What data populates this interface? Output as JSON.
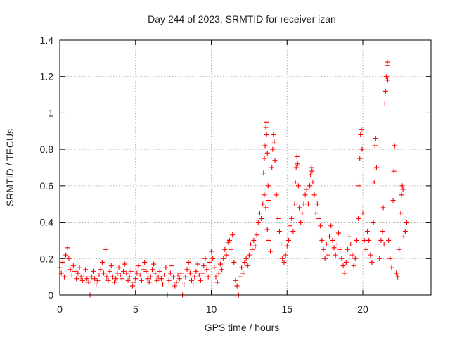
{
  "chart_data": {
    "type": "scatter",
    "title": "Day 244 of 2023, SRMTID for receiver izan",
    "xlabel": "GPS time / hours",
    "ylabel": "SRMTID / TECUs",
    "xlim": [
      0,
      24.5
    ],
    "ylim": [
      0,
      1.4
    ],
    "xticks": [
      0,
      5,
      10,
      15,
      20
    ],
    "xtick_labels": [
      "0",
      "5",
      "10",
      "15",
      "20"
    ],
    "yticks": [
      0,
      0.2,
      0.4,
      0.6,
      0.8,
      1.0,
      1.2,
      1.4
    ],
    "ytick_labels": [
      "0",
      "0.2",
      "0.4",
      "0.6",
      "0.8",
      "1",
      "1.2",
      "1.4"
    ],
    "grid": true,
    "marker": "+",
    "color": "#ff0000",
    "series": [
      {
        "name": "SRMTID",
        "points": [
          [
            0.0,
            0.15
          ],
          [
            0.1,
            0.12
          ],
          [
            0.2,
            0.18
          ],
          [
            0.3,
            0.1
          ],
          [
            0.4,
            0.22
          ],
          [
            0.5,
            0.26
          ],
          [
            0.6,
            0.2
          ],
          [
            0.7,
            0.14
          ],
          [
            0.8,
            0.11
          ],
          [
            0.9,
            0.16
          ],
          [
            1.0,
            0.13
          ],
          [
            1.1,
            0.09
          ],
          [
            1.2,
            0.12
          ],
          [
            1.3,
            0.15
          ],
          [
            1.4,
            0.1
          ],
          [
            1.5,
            0.08
          ],
          [
            1.6,
            0.11
          ],
          [
            1.7,
            0.14
          ],
          [
            1.8,
            0.09
          ],
          [
            1.9,
            0.07
          ],
          [
            2.0,
            0.0
          ],
          [
            2.1,
            0.1
          ],
          [
            2.2,
            0.13
          ],
          [
            2.3,
            0.09
          ],
          [
            2.4,
            0.06
          ],
          [
            2.5,
            0.08
          ],
          [
            2.6,
            0.11
          ],
          [
            2.7,
            0.14
          ],
          [
            2.8,
            0.18
          ],
          [
            2.9,
            0.12
          ],
          [
            3.0,
            0.25
          ],
          [
            3.1,
            0.1
          ],
          [
            3.2,
            0.08
          ],
          [
            3.3,
            0.13
          ],
          [
            3.4,
            0.16
          ],
          [
            3.5,
            0.1
          ],
          [
            3.6,
            0.07
          ],
          [
            3.7,
            0.09
          ],
          [
            3.8,
            0.12
          ],
          [
            3.9,
            0.15
          ],
          [
            4.0,
            0.11
          ],
          [
            4.1,
            0.09
          ],
          [
            4.2,
            0.13
          ],
          [
            4.3,
            0.17
          ],
          [
            4.4,
            0.12
          ],
          [
            4.5,
            0.08
          ],
          [
            4.6,
            0.1
          ],
          [
            4.7,
            0.13
          ],
          [
            4.8,
            0.05
          ],
          [
            4.9,
            0.07
          ],
          [
            5.0,
            0.09
          ],
          [
            5.1,
            0.12
          ],
          [
            5.2,
            0.16
          ],
          [
            5.3,
            0.11
          ],
          [
            5.4,
            0.08
          ],
          [
            5.5,
            0.14
          ],
          [
            5.6,
            0.18
          ],
          [
            5.7,
            0.13
          ],
          [
            5.8,
            0.09
          ],
          [
            5.9,
            0.07
          ],
          [
            6.0,
            0.1
          ],
          [
            6.1,
            0.14
          ],
          [
            6.2,
            0.17
          ],
          [
            6.3,
            0.12
          ],
          [
            6.4,
            0.08
          ],
          [
            6.5,
            0.1
          ],
          [
            6.6,
            0.13
          ],
          [
            6.7,
            0.09
          ],
          [
            6.8,
            0.06
          ],
          [
            6.9,
            0.11
          ],
          [
            7.0,
            0.15
          ],
          [
            7.1,
            0.0
          ],
          [
            7.2,
            0.08
          ],
          [
            7.3,
            0.12
          ],
          [
            7.4,
            0.16
          ],
          [
            7.5,
            0.1
          ],
          [
            7.6,
            0.05
          ],
          [
            7.7,
            0.07
          ],
          [
            7.8,
            0.11
          ],
          [
            7.9,
            0.09
          ],
          [
            8.0,
            0.12
          ],
          [
            8.1,
            0.0
          ],
          [
            8.2,
            0.06
          ],
          [
            8.3,
            0.1
          ],
          [
            8.4,
            0.14
          ],
          [
            8.5,
            0.18
          ],
          [
            8.6,
            0.12
          ],
          [
            8.7,
            0.08
          ],
          [
            8.8,
            0.06
          ],
          [
            8.9,
            0.1
          ],
          [
            9.0,
            0.13
          ],
          [
            9.1,
            0.17
          ],
          [
            9.2,
            0.11
          ],
          [
            9.3,
            0.08
          ],
          [
            9.4,
            0.12
          ],
          [
            9.5,
            0.16
          ],
          [
            9.6,
            0.2
          ],
          [
            9.7,
            0.14
          ],
          [
            9.8,
            0.1
          ],
          [
            9.9,
            0.18
          ],
          [
            10.0,
            0.24
          ],
          [
            10.1,
            0.2
          ],
          [
            10.2,
            0.15
          ],
          [
            10.3,
            0.1
          ],
          [
            10.4,
            0.07
          ],
          [
            10.5,
            0.12
          ],
          [
            10.6,
            0.17
          ],
          [
            10.7,
            0.14
          ],
          [
            10.8,
            0.2
          ],
          [
            10.9,
            0.25
          ],
          [
            11.0,
            0.22
          ],
          [
            11.1,
            0.29
          ],
          [
            11.2,
            0.3
          ],
          [
            11.3,
            0.25
          ],
          [
            11.4,
            0.33
          ],
          [
            11.5,
            0.18
          ],
          [
            11.6,
            0.08
          ],
          [
            11.7,
            0.05
          ],
          [
            11.8,
            0.0
          ],
          [
            11.9,
            0.1
          ],
          [
            12.0,
            0.15
          ],
          [
            12.1,
            0.12
          ],
          [
            12.2,
            0.18
          ],
          [
            12.3,
            0.2
          ],
          [
            12.4,
            0.16
          ],
          [
            12.5,
            0.22
          ],
          [
            12.6,
            0.28
          ],
          [
            12.7,
            0.25
          ],
          [
            12.8,
            0.3
          ],
          [
            12.9,
            0.27
          ],
          [
            13.0,
            0.33
          ],
          [
            13.1,
            0.4
          ],
          [
            13.2,
            0.45
          ],
          [
            13.3,
            0.42
          ],
          [
            13.4,
            0.5
          ],
          [
            13.5,
            0.55
          ],
          [
            13.6,
            0.48
          ],
          [
            13.7,
            0.36
          ],
          [
            13.8,
            0.3
          ],
          [
            13.9,
            0.24
          ],
          [
            13.45,
            0.67
          ],
          [
            13.5,
            0.75
          ],
          [
            13.55,
            0.82
          ],
          [
            13.6,
            0.92
          ],
          [
            13.62,
            0.95
          ],
          [
            13.65,
            0.88
          ],
          [
            13.7,
            0.78
          ],
          [
            13.75,
            0.6
          ],
          [
            13.8,
            0.52
          ],
          [
            14.0,
            0.7
          ],
          [
            14.05,
            0.8
          ],
          [
            14.1,
            0.88
          ],
          [
            14.15,
            0.84
          ],
          [
            14.2,
            0.74
          ],
          [
            14.3,
            0.55
          ],
          [
            14.4,
            0.42
          ],
          [
            14.5,
            0.35
          ],
          [
            14.6,
            0.28
          ],
          [
            14.7,
            0.2
          ],
          [
            14.8,
            0.18
          ],
          [
            14.9,
            0.22
          ],
          [
            15.0,
            0.27
          ],
          [
            15.1,
            0.3
          ],
          [
            15.2,
            0.38
          ],
          [
            15.3,
            0.42
          ],
          [
            15.4,
            0.35
          ],
          [
            15.5,
            0.5
          ],
          [
            15.55,
            0.62
          ],
          [
            15.6,
            0.7
          ],
          [
            15.65,
            0.76
          ],
          [
            15.7,
            0.72
          ],
          [
            15.75,
            0.6
          ],
          [
            15.8,
            0.48
          ],
          [
            15.9,
            0.4
          ],
          [
            16.0,
            0.45
          ],
          [
            16.1,
            0.5
          ],
          [
            16.2,
            0.55
          ],
          [
            16.3,
            0.58
          ],
          [
            16.4,
            0.5
          ],
          [
            16.5,
            0.6
          ],
          [
            16.55,
            0.66
          ],
          [
            16.6,
            0.7
          ],
          [
            16.65,
            0.68
          ],
          [
            16.7,
            0.62
          ],
          [
            16.8,
            0.55
          ],
          [
            16.9,
            0.45
          ],
          [
            17.0,
            0.5
          ],
          [
            17.1,
            0.42
          ],
          [
            17.2,
            0.38
          ],
          [
            17.3,
            0.3
          ],
          [
            17.4,
            0.25
          ],
          [
            17.5,
            0.2
          ],
          [
            17.6,
            0.28
          ],
          [
            17.7,
            0.22
          ],
          [
            17.8,
            0.32
          ],
          [
            17.9,
            0.38
          ],
          [
            18.0,
            0.3
          ],
          [
            18.1,
            0.26
          ],
          [
            18.2,
            0.22
          ],
          [
            18.3,
            0.28
          ],
          [
            18.4,
            0.34
          ],
          [
            18.5,
            0.25
          ],
          [
            18.6,
            0.2
          ],
          [
            18.7,
            0.16
          ],
          [
            18.8,
            0.12
          ],
          [
            18.9,
            0.18
          ],
          [
            19.0,
            0.25
          ],
          [
            19.1,
            0.32
          ],
          [
            19.2,
            0.28
          ],
          [
            19.3,
            0.22
          ],
          [
            19.4,
            0.16
          ],
          [
            19.5,
            0.2
          ],
          [
            19.6,
            0.3
          ],
          [
            19.7,
            0.42
          ],
          [
            19.75,
            0.6
          ],
          [
            19.8,
            0.75
          ],
          [
            19.85,
            0.88
          ],
          [
            19.9,
            0.91
          ],
          [
            19.95,
            0.8
          ],
          [
            20.0,
            0.45
          ],
          [
            20.1,
            0.3
          ],
          [
            20.2,
            0.25
          ],
          [
            20.3,
            0.35
          ],
          [
            20.4,
            0.3
          ],
          [
            20.5,
            0.22
          ],
          [
            20.6,
            0.18
          ],
          [
            20.7,
            0.4
          ],
          [
            20.75,
            0.62
          ],
          [
            20.8,
            0.82
          ],
          [
            20.85,
            0.86
          ],
          [
            20.9,
            0.7
          ],
          [
            21.0,
            0.28
          ],
          [
            21.1,
            0.2
          ],
          [
            21.2,
            0.3
          ],
          [
            21.3,
            0.35
          ],
          [
            21.35,
            0.48
          ],
          [
            21.4,
            0.28
          ],
          [
            21.45,
            1.05
          ],
          [
            21.5,
            1.12
          ],
          [
            21.55,
            1.2
          ],
          [
            21.6,
            1.26
          ],
          [
            21.62,
            1.28
          ],
          [
            21.65,
            1.18
          ],
          [
            21.7,
            0.3
          ],
          [
            21.8,
            0.2
          ],
          [
            21.9,
            0.15
          ],
          [
            22.0,
            0.52
          ],
          [
            22.05,
            0.68
          ],
          [
            22.1,
            0.82
          ],
          [
            22.2,
            0.12
          ],
          [
            22.3,
            0.1
          ],
          [
            22.4,
            0.25
          ],
          [
            22.5,
            0.45
          ],
          [
            22.55,
            0.55
          ],
          [
            22.6,
            0.6
          ],
          [
            22.65,
            0.58
          ],
          [
            22.7,
            0.32
          ],
          [
            22.8,
            0.35
          ],
          [
            22.9,
            0.4
          ]
        ]
      }
    ]
  }
}
